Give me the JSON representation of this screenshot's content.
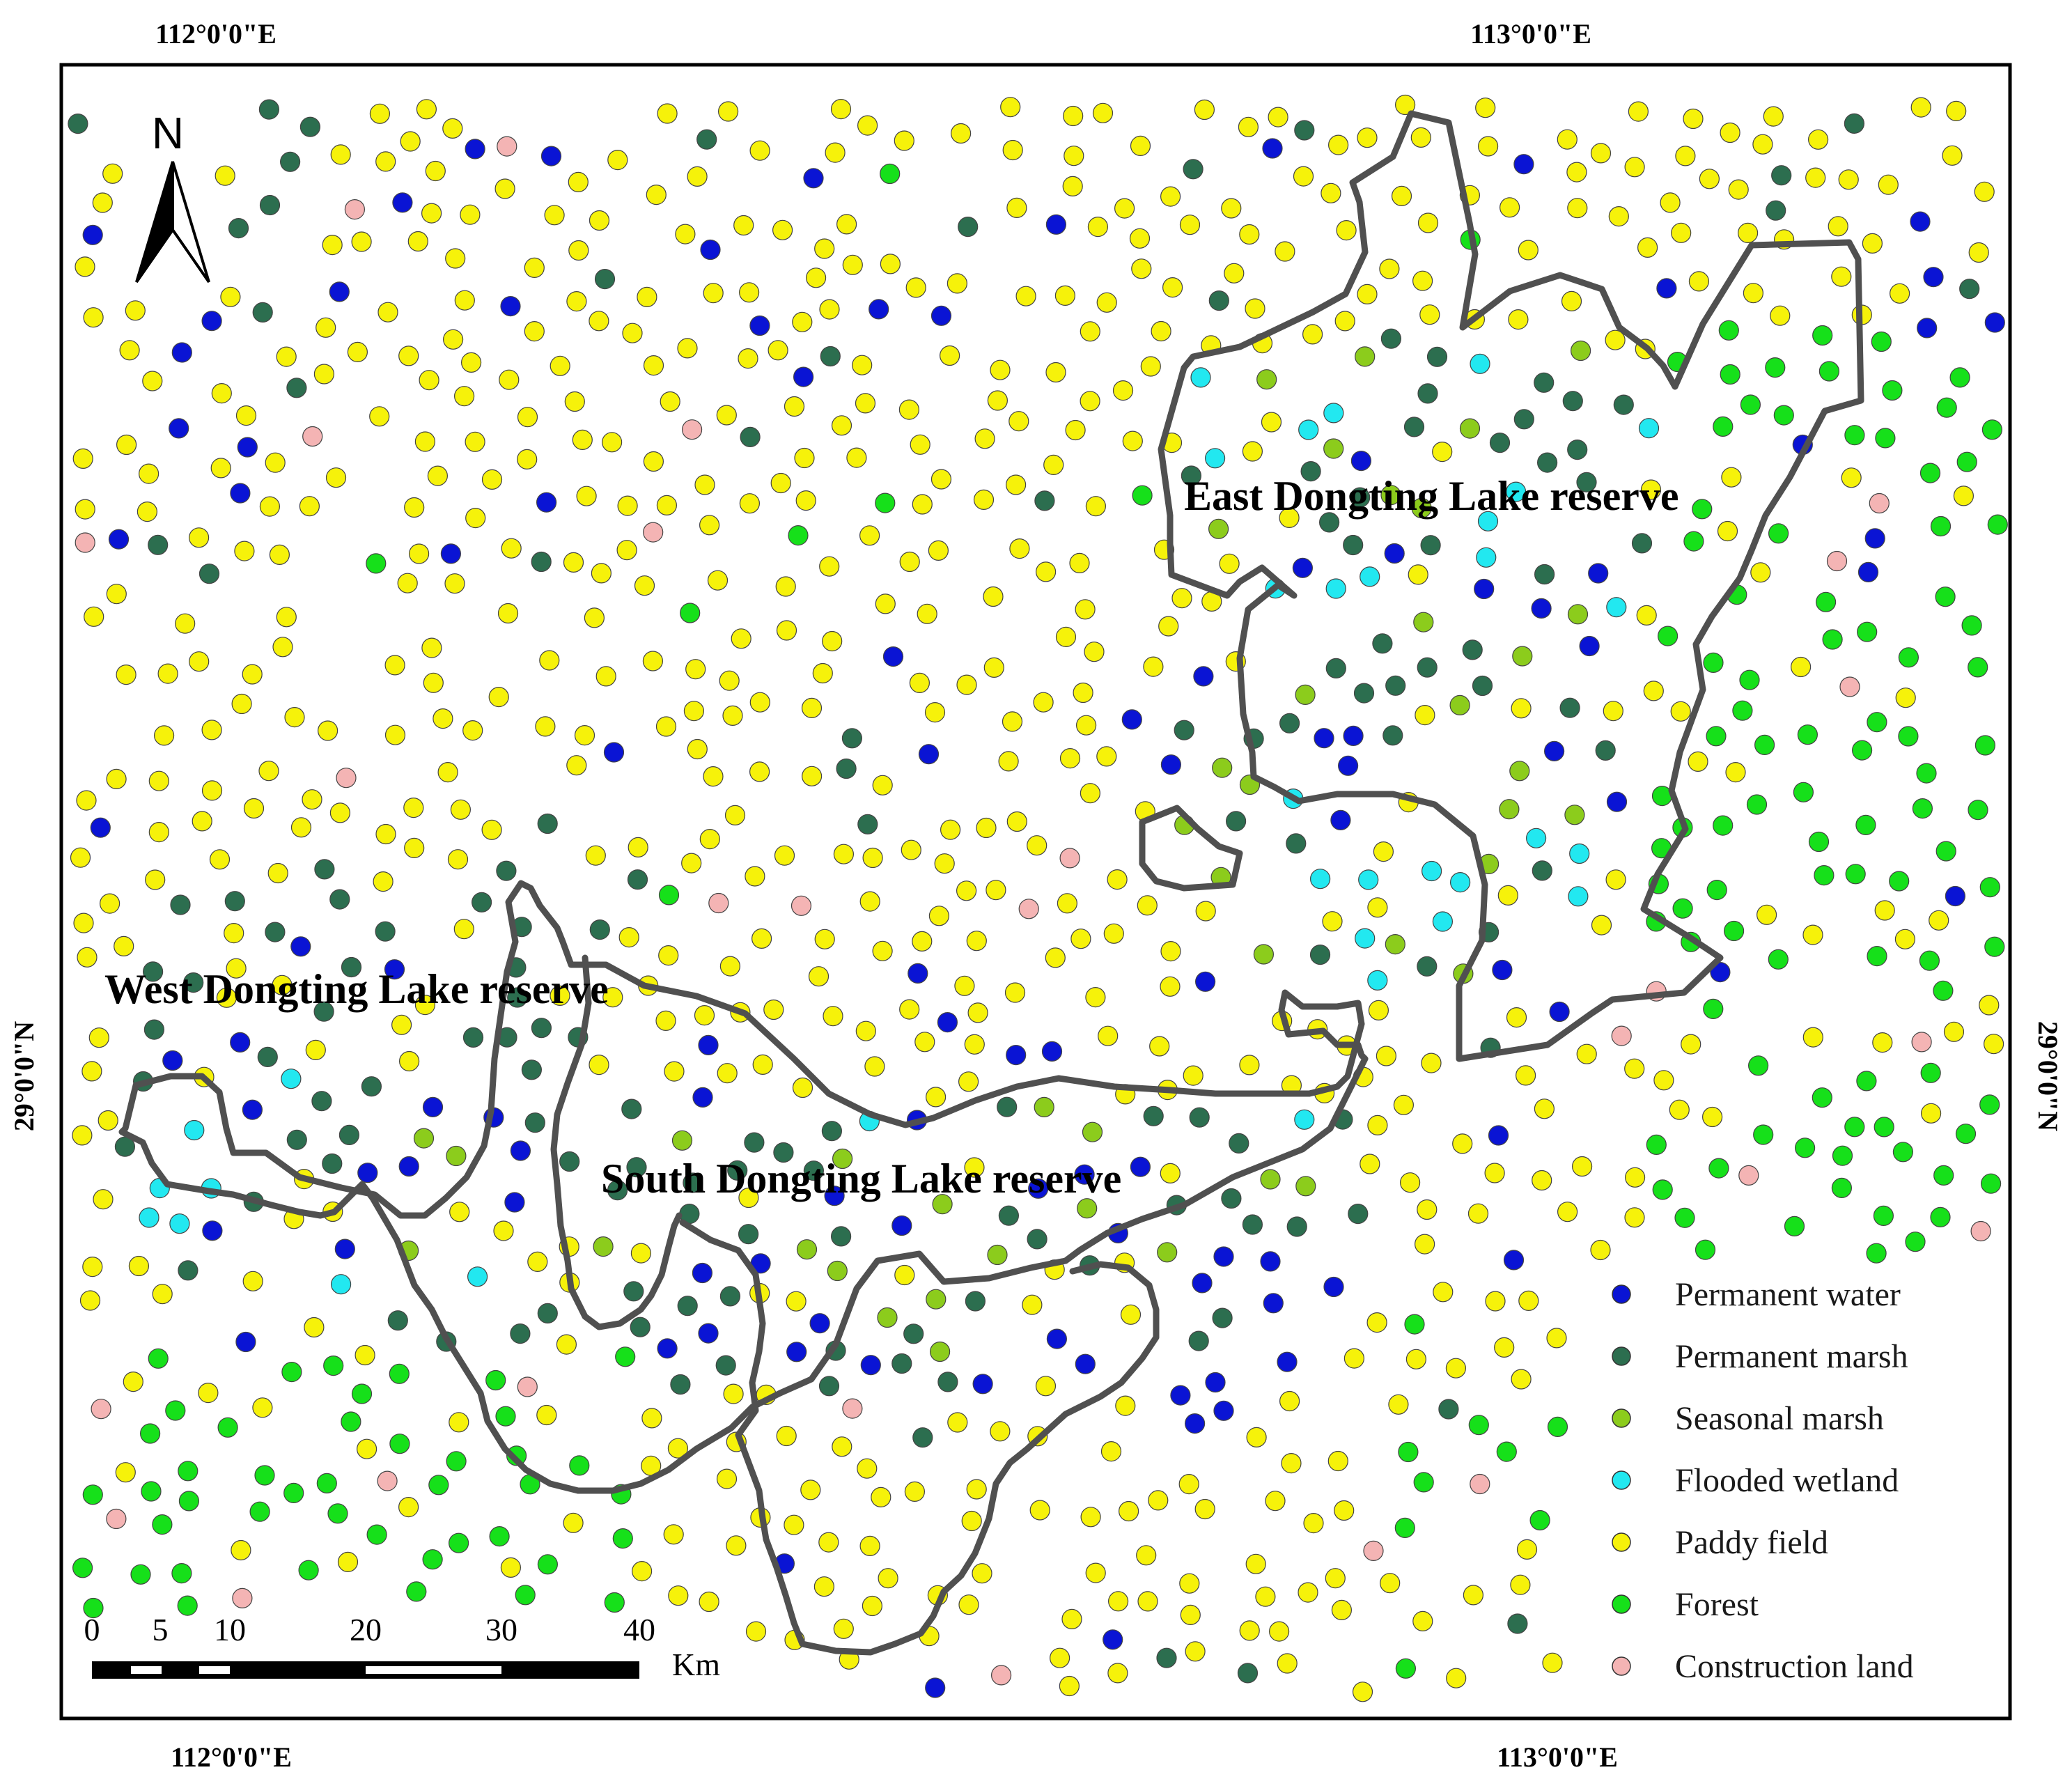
{
  "coordinates": {
    "top_left": "112°0'0\"E",
    "top_right": "113°0'0\"E",
    "bottom_left": "112°0'0\"E",
    "bottom_right": "113°0'0\"E",
    "left_lat": "29°0'0\"N",
    "right_lat": "29°0'0\"N"
  },
  "north_arrow": {
    "label": "N"
  },
  "reserves": {
    "east": "East Dongting Lake reserve",
    "west": "West Dongting Lake reserve",
    "south": "South Dongting Lake reserve"
  },
  "legend": [
    {
      "label": "Permanent water",
      "color": "#0a14d4"
    },
    {
      "label": "Permanent marsh",
      "color": "#2c6e4f"
    },
    {
      "label": "Seasonal marsh",
      "color": "#8ccc1c"
    },
    {
      "label": "Flooded wetland",
      "color": "#22e8f0"
    },
    {
      "label": "Paddy field",
      "color": "#f6f20a"
    },
    {
      "label": "Forest",
      "color": "#16e01a"
    },
    {
      "label": "Construction land",
      "color": "#f4b4b4"
    }
  ],
  "scale_bar": {
    "ticks": [
      "0",
      "5",
      "10",
      "20",
      "30",
      "40"
    ],
    "unit": "Km"
  },
  "colors": {
    "boundary": "#505050",
    "frame": "#000000"
  }
}
